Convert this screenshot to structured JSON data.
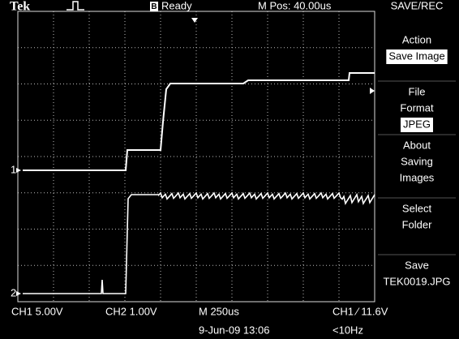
{
  "header": {
    "brand": "Tek",
    "status_icon": "B",
    "status": "Ready",
    "position": "M Pos: 40.00us",
    "menu_title": "SAVE/REC"
  },
  "menu": [
    {
      "lines": [
        "Action"
      ],
      "selected": "Save Image"
    },
    {
      "lines": [
        "File",
        "Format"
      ],
      "selected": "JPEG"
    },
    {
      "lines": [
        "About",
        "Saving",
        "Images"
      ]
    },
    {
      "lines": [
        "Select",
        "Folder"
      ]
    },
    {
      "lines": [
        "Save",
        "TEK0019.JPG"
      ]
    }
  ],
  "channels": [
    "1",
    "2"
  ],
  "footer": {
    "ch1": "CH1  5.00V",
    "ch2": "CH2  1.00V",
    "timebase": "M 250us",
    "trigger": "CH1 ∕ 11.6V",
    "date": "9-Jun-09 13:06",
    "freq": "<10Hz"
  }
}
